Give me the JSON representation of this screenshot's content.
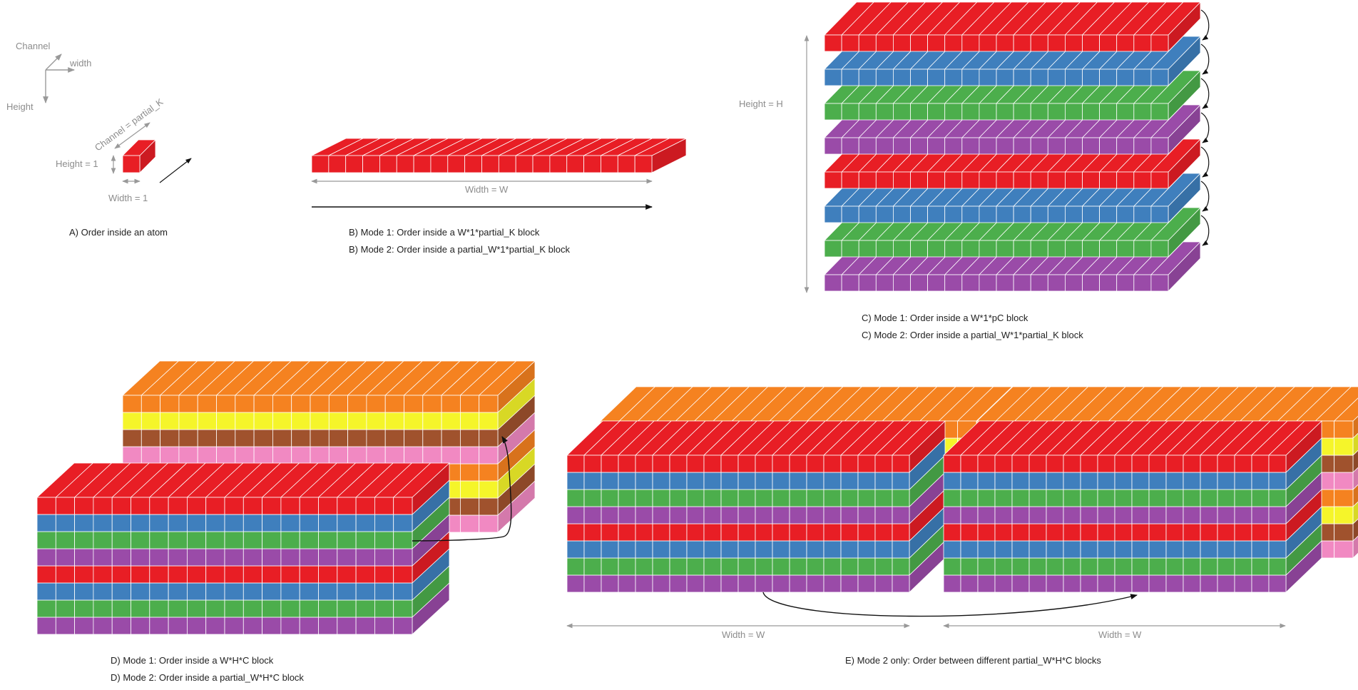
{
  "colors": {
    "red": "#e81e25",
    "blue": "#3f7fbd",
    "green": "#4cae4c",
    "purple": "#9a4ba8",
    "orange": "#f58220",
    "yellow": "#f5f52a",
    "brown": "#a0522d",
    "pink": "#f189c2",
    "arrow_gray": "#999999",
    "label_gray": "#8c8c8c",
    "caption_black": "#222222"
  },
  "axes_legend": {
    "channel": "Channel",
    "width": "width",
    "height": "Height"
  },
  "panel_a": {
    "channel_label": "Channel = partial_K",
    "height_label": "Height = 1",
    "width_label": "Width = 1",
    "caption": "A) Order inside an atom"
  },
  "panel_b": {
    "width_label": "Width = W",
    "caption_mode1": "B) Mode 1: Order inside a W*1*partial_K block",
    "caption_mode2": "B) Mode 2: Order inside a partial_W*1*partial_K block"
  },
  "panel_c": {
    "height_label": "Height = H",
    "layer_colors": [
      "red",
      "blue",
      "green",
      "purple",
      "red",
      "blue",
      "green",
      "purple"
    ],
    "caption_mode1": "C) Mode 1: Order inside a W*1*pC block",
    "caption_mode2": "C) Mode 2: Order inside a partial_W*1*partial_K block"
  },
  "panel_d": {
    "back_layer_colors": [
      "orange",
      "yellow",
      "brown",
      "pink",
      "orange",
      "yellow",
      "brown",
      "pink"
    ],
    "front_layer_colors": [
      "red",
      "blue",
      "green",
      "purple",
      "red",
      "blue",
      "green",
      "purple"
    ],
    "caption_mode1": "D) Mode 1: Order inside a W*H*C block",
    "caption_mode2": "D) Mode 2: Order inside a partial_W*H*C block"
  },
  "panel_e": {
    "back_layer_colors": [
      "orange",
      "yellow",
      "brown",
      "pink",
      "orange",
      "yellow",
      "brown",
      "pink"
    ],
    "front_layer_colors": [
      "red",
      "blue",
      "green",
      "purple",
      "red",
      "blue",
      "green",
      "purple"
    ],
    "width_label_left": "Width = W",
    "width_label_right": "Width = W",
    "caption": "E) Mode 2 only: Order between different partial_W*H*C blocks"
  }
}
